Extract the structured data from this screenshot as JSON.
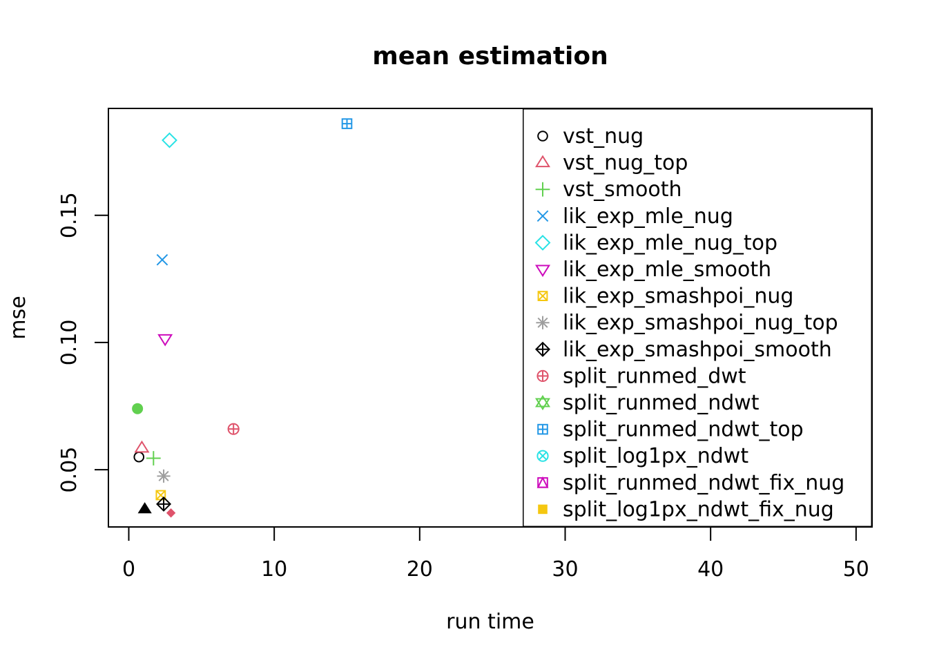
{
  "chart_data": {
    "type": "scatter",
    "title": "mean estimation",
    "xlabel": "run time",
    "ylabel": "mse",
    "xlim": [
      -1.4,
      51.1
    ],
    "ylim": [
      0.0275,
      0.192
    ],
    "xticks": [
      0,
      10,
      20,
      30,
      40,
      50
    ],
    "yticks": [
      0.05,
      0.1,
      0.15
    ],
    "xtick_labels": [
      "0",
      "10",
      "20",
      "30",
      "40",
      "50"
    ],
    "ytick_labels": [
      "0.05",
      "0.10",
      "0.15"
    ],
    "legend_position": "top-right",
    "series": [
      {
        "name": "vst_nug",
        "marker": "circle",
        "color": "#000000",
        "x": 0.7,
        "y": 0.055
      },
      {
        "name": "vst_nug_top",
        "marker": "triangle-up",
        "color": "#DF536B",
        "x": 0.9,
        "y": 0.0585
      },
      {
        "name": "vst_smooth",
        "marker": "plus",
        "color": "#61D04F",
        "x": 1.7,
        "y": 0.0545
      },
      {
        "name": "lik_exp_mle_nug",
        "marker": "cross",
        "color": "#2297E6",
        "x": 2.3,
        "y": 0.1325
      },
      {
        "name": "lik_exp_mle_nug_top",
        "marker": "diamond",
        "color": "#28E2E5",
        "x": 2.8,
        "y": 0.1795
      },
      {
        "name": "lik_exp_mle_smooth",
        "marker": "triangle-down",
        "color": "#CD0BBC",
        "x": 2.5,
        "y": 0.1015
      },
      {
        "name": "lik_exp_smashpoi_nug",
        "marker": "square-cross",
        "color": "#F5C710",
        "x": 2.2,
        "y": 0.04
      },
      {
        "name": "lik_exp_smashpoi_nug_top",
        "marker": "asterisk",
        "color": "#9E9E9E",
        "x": 2.4,
        "y": 0.0475
      },
      {
        "name": "lik_exp_smashpoi_smooth",
        "marker": "diamond-plus",
        "color": "#000000",
        "x": 2.4,
        "y": 0.0365
      },
      {
        "name": "split_runmed_dwt",
        "marker": "circle-plus",
        "color": "#DF536B",
        "x": 7.2,
        "y": 0.066
      },
      {
        "name": "split_runmed_ndwt",
        "marker": "star-of-david",
        "color": "#61D04F",
        "x": null,
        "y": null
      },
      {
        "name": "split_runmed_ndwt_top",
        "marker": "square-plus",
        "color": "#2297E6",
        "x": 15.0,
        "y": 0.186
      },
      {
        "name": "split_log1px_ndwt",
        "marker": "circle-cross",
        "color": "#28E2E5",
        "x": null,
        "y": null
      },
      {
        "name": "split_runmed_ndwt_fix_nug",
        "marker": "square-triangle",
        "color": "#CD0BBC",
        "x": null,
        "y": null
      },
      {
        "name": "split_log1px_ndwt_fix_nug",
        "marker": "filled-square",
        "color": "#F5C710",
        "x": null,
        "y": null
      }
    ],
    "extra_points": [
      {
        "marker": "filled-circle",
        "color": "#61D04F",
        "x": 0.6,
        "y": 0.074
      },
      {
        "marker": "filled-triangle",
        "color": "#000000",
        "x": 1.1,
        "y": 0.0345
      },
      {
        "marker": "filled-diamond",
        "color": "#DF536B",
        "x": 2.9,
        "y": 0.033
      }
    ]
  }
}
